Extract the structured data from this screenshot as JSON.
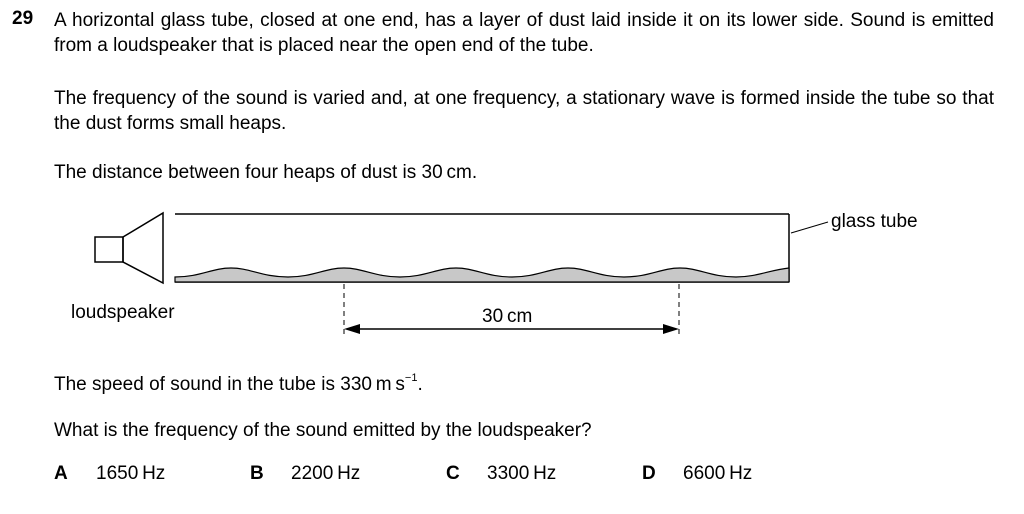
{
  "question": {
    "number": "29",
    "paragraph1": "A horizontal glass tube, closed at one end, has a layer of dust laid inside it on its lower side. Sound is emitted from a loudspeaker that is placed near the open end of the tube.",
    "paragraph2": "The frequency of the sound is varied and, at one frequency, a stationary wave is formed inside the tube so that the dust forms small heaps.",
    "paragraph3": "The distance between four heaps of dust is 30 cm.",
    "speed_text": "The speed of sound in the tube is 330 m s",
    "speed_exponent": "−1",
    "speed_end": ".",
    "prompt": "What is the frequency of the sound emitted by the loudspeaker?"
  },
  "diagram": {
    "label_glass_tube": "glass tube",
    "label_loudspeaker": "loudspeaker",
    "label_distance": "30 cm"
  },
  "options": [
    {
      "letter": "A",
      "value": "1650 Hz"
    },
    {
      "letter": "B",
      "value": "2200 Hz"
    },
    {
      "letter": "C",
      "value": "3300 Hz"
    },
    {
      "letter": "D",
      "value": "6600 Hz"
    }
  ]
}
